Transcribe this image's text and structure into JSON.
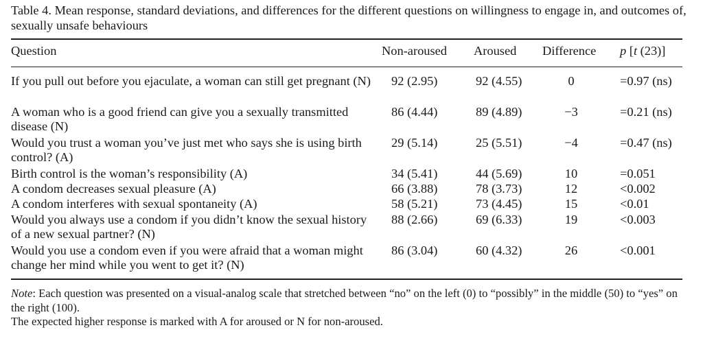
{
  "table": {
    "caption": "Table 4.  Mean response, standard deviations, and differences for the different questions on willingness to engage in, and outcomes of, sexually unsafe behaviours",
    "headers": {
      "question": "Question",
      "non_aroused": "Non-aroused",
      "aroused": "Aroused",
      "difference": "Difference",
      "p_italic": "p",
      "t_italic": "t",
      "p_rest_open": " [",
      "p_rest_close": " (23)]"
    },
    "rows": [
      {
        "question": "If you pull out before you ejaculate, a woman can still get pregnant (N)",
        "non_aroused": "92 (2.95)",
        "aroused": "92 (4.55)",
        "difference": "0",
        "p": "=0.97 (ns)"
      },
      {
        "question": "A woman who is a good friend can give you a sexually transmitted disease (N)",
        "non_aroused": "86 (4.44)",
        "aroused": "89 (4.89)",
        "difference": "−3",
        "p": "=0.21 (ns)"
      },
      {
        "question": "Would you trust a woman you’ve just met who says she is using birth control? (A)",
        "non_aroused": "29 (5.14)",
        "aroused": "25 (5.51)",
        "difference": "−4",
        "p": "=0.47 (ns)"
      },
      {
        "question": "Birth control is the woman’s responsibility (A)",
        "non_aroused": "34 (5.41)",
        "aroused": "44 (5.69)",
        "difference": "10",
        "p": "=0.051"
      },
      {
        "question": "A condom decreases sexual pleasure (A)",
        "non_aroused": "66 (3.88)",
        "aroused": "78 (3.73)",
        "difference": "12",
        "p": "<0.002"
      },
      {
        "question": "A condom interferes with sexual spontaneity (A)",
        "non_aroused": "58 (5.21)",
        "aroused": "73 (4.45)",
        "difference": "15",
        "p": "<0.01"
      },
      {
        "question": "Would you always use a condom if you didn’t know the sexual history of a new sexual partner? (N)",
        "non_aroused": "88 (2.66)",
        "aroused": "69 (6.33)",
        "difference": "19",
        "p": "<0.003"
      },
      {
        "question": "Would you use a condom even if you were afraid that a woman might change her mind while you went to get it? (N)",
        "non_aroused": "86 (3.04)",
        "aroused": "60 (4.32)",
        "difference": "26",
        "p": "<0.001"
      }
    ],
    "note": {
      "label": "Note",
      "line1": ": Each question was presented on a visual-analog scale that stretched between “no” on the left (0) to “possibly” in the middle (50) to “yes” on the right (100).",
      "line2": "The expected higher response is marked with A for aroused or N for non-aroused."
    }
  }
}
